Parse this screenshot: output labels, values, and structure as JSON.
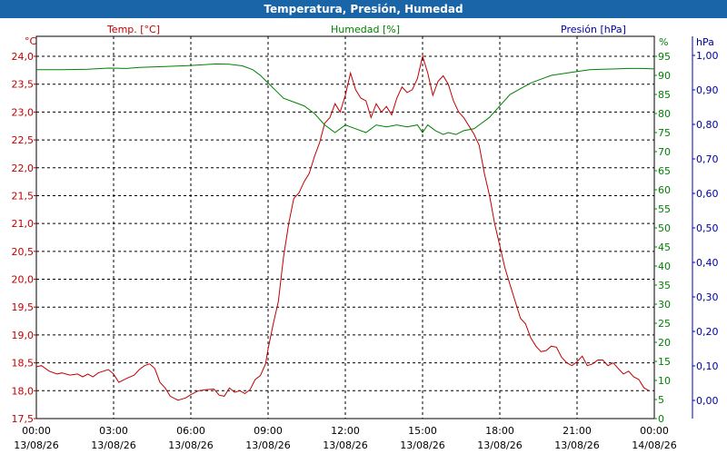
{
  "window": {
    "title": "Temperatura, Presión, Humedad"
  },
  "colors": {
    "temp": "#c00000",
    "hum": "#008000",
    "pres": "#0000a0",
    "titlebar": "#1a64a8"
  },
  "chart_data": {
    "type": "line",
    "title": "Temperatura, Presión, Humedad",
    "grid": true,
    "x_range": [
      "13/08/26 00:00",
      "14/08/26 00:00"
    ],
    "x_ticks": [
      {
        "time": "00:00",
        "date": "13/08/26"
      },
      {
        "time": "03:00",
        "date": "13/08/26"
      },
      {
        "time": "06:00",
        "date": "13/08/26"
      },
      {
        "time": "09:00",
        "date": "13/08/26"
      },
      {
        "time": "12:00",
        "date": "13/08/26"
      },
      {
        "time": "15:00",
        "date": "13/08/26"
      },
      {
        "time": "18:00",
        "date": "13/08/26"
      },
      {
        "time": "21:00",
        "date": "13/08/26"
      },
      {
        "time": "00:00",
        "date": "14/08/26"
      }
    ],
    "axes": {
      "temp": {
        "label": "Temp. [°C]",
        "unit": "°C",
        "range": [
          17.5,
          24.0
        ],
        "ticks": [
          "17,5",
          "18,0",
          "18,5",
          "19,0",
          "19,5",
          "20,0",
          "20,5",
          "21,0",
          "21,5",
          "22,0",
          "22,5",
          "23,0",
          "23,5",
          "24,0"
        ]
      },
      "hum": {
        "label": "Humedad [%]",
        "unit": "%",
        "range": [
          0,
          95
        ],
        "ticks": [
          "0",
          "5",
          "10",
          "15",
          "20",
          "25",
          "30",
          "35",
          "40",
          "45",
          "50",
          "55",
          "60",
          "65",
          "70",
          "75",
          "80",
          "85",
          "90",
          "95"
        ]
      },
      "pres": {
        "label": "Presión [hPa]",
        "unit": "hPa",
        "range": [
          0.0,
          1.0
        ],
        "ticks": [
          "0,00",
          "0,10",
          "0,20",
          "0,30",
          "0,40",
          "0,50",
          "0,60",
          "0,70",
          "0,80",
          "0,90",
          "1,00"
        ]
      }
    },
    "series": [
      {
        "name": "Temp. [°C]",
        "axis": "temp",
        "points": [
          [
            0.0,
            18.43
          ],
          [
            0.2,
            18.45
          ],
          [
            0.5,
            18.35
          ],
          [
            0.8,
            18.3
          ],
          [
            1.0,
            18.32
          ],
          [
            1.3,
            18.28
          ],
          [
            1.6,
            18.3
          ],
          [
            1.8,
            18.25
          ],
          [
            2.0,
            18.3
          ],
          [
            2.2,
            18.25
          ],
          [
            2.4,
            18.32
          ],
          [
            2.6,
            18.35
          ],
          [
            2.8,
            18.38
          ],
          [
            3.0,
            18.3
          ],
          [
            3.2,
            18.15
          ],
          [
            3.5,
            18.22
          ],
          [
            3.8,
            18.28
          ],
          [
            4.0,
            18.38
          ],
          [
            4.2,
            18.45
          ],
          [
            4.4,
            18.48
          ],
          [
            4.6,
            18.4
          ],
          [
            4.8,
            18.15
          ],
          [
            5.0,
            18.05
          ],
          [
            5.2,
            17.9
          ],
          [
            5.5,
            17.83
          ],
          [
            5.8,
            17.87
          ],
          [
            6.0,
            17.93
          ],
          [
            6.3,
            18.0
          ],
          [
            6.6,
            18.02
          ],
          [
            6.9,
            18.03
          ],
          [
            7.1,
            17.92
          ],
          [
            7.3,
            17.9
          ],
          [
            7.5,
            18.05
          ],
          [
            7.7,
            17.97
          ],
          [
            7.9,
            18.0
          ],
          [
            8.1,
            17.95
          ],
          [
            8.3,
            18.02
          ],
          [
            8.5,
            18.2
          ],
          [
            8.7,
            18.27
          ],
          [
            8.9,
            18.48
          ],
          [
            9.0,
            18.75
          ],
          [
            9.2,
            19.2
          ],
          [
            9.4,
            19.6
          ],
          [
            9.6,
            20.4
          ],
          [
            9.8,
            21.0
          ],
          [
            10.0,
            21.45
          ],
          [
            10.2,
            21.55
          ],
          [
            10.4,
            21.75
          ],
          [
            10.6,
            21.9
          ],
          [
            10.8,
            22.2
          ],
          [
            11.0,
            22.45
          ],
          [
            11.2,
            22.8
          ],
          [
            11.4,
            22.9
          ],
          [
            11.6,
            23.15
          ],
          [
            11.8,
            23.0
          ],
          [
            12.0,
            23.3
          ],
          [
            12.2,
            23.7
          ],
          [
            12.4,
            23.4
          ],
          [
            12.6,
            23.25
          ],
          [
            12.8,
            23.2
          ],
          [
            13.0,
            22.9
          ],
          [
            13.2,
            23.15
          ],
          [
            13.4,
            23.0
          ],
          [
            13.6,
            23.1
          ],
          [
            13.8,
            22.95
          ],
          [
            14.0,
            23.25
          ],
          [
            14.2,
            23.45
          ],
          [
            14.4,
            23.35
          ],
          [
            14.6,
            23.4
          ],
          [
            14.8,
            23.6
          ],
          [
            15.0,
            24.0
          ],
          [
            15.2,
            23.7
          ],
          [
            15.4,
            23.3
          ],
          [
            15.6,
            23.55
          ],
          [
            15.8,
            23.65
          ],
          [
            16.0,
            23.5
          ],
          [
            16.2,
            23.2
          ],
          [
            16.4,
            23.0
          ],
          [
            16.6,
            22.9
          ],
          [
            16.8,
            22.75
          ],
          [
            17.0,
            22.6
          ],
          [
            17.2,
            22.4
          ],
          [
            17.4,
            21.9
          ],
          [
            17.6,
            21.5
          ],
          [
            17.8,
            21.0
          ],
          [
            18.0,
            20.6
          ],
          [
            18.2,
            20.2
          ],
          [
            18.4,
            19.9
          ],
          [
            18.6,
            19.6
          ],
          [
            18.8,
            19.3
          ],
          [
            19.0,
            19.2
          ],
          [
            19.2,
            18.95
          ],
          [
            19.4,
            18.8
          ],
          [
            19.6,
            18.7
          ],
          [
            19.8,
            18.72
          ],
          [
            20.0,
            18.8
          ],
          [
            20.2,
            18.78
          ],
          [
            20.4,
            18.6
          ],
          [
            20.6,
            18.5
          ],
          [
            20.8,
            18.45
          ],
          [
            21.0,
            18.52
          ],
          [
            21.2,
            18.62
          ],
          [
            21.4,
            18.45
          ],
          [
            21.6,
            18.48
          ],
          [
            21.8,
            18.55
          ],
          [
            22.0,
            18.55
          ],
          [
            22.2,
            18.45
          ],
          [
            22.4,
            18.5
          ],
          [
            22.6,
            18.4
          ],
          [
            22.8,
            18.3
          ],
          [
            23.0,
            18.35
          ],
          [
            23.2,
            18.25
          ],
          [
            23.4,
            18.2
          ],
          [
            23.6,
            18.05
          ],
          [
            23.8,
            18.0
          ]
        ]
      },
      {
        "name": "Humedad [%]",
        "axis": "hum",
        "points": [
          [
            0.0,
            91.5
          ],
          [
            1.0,
            91.5
          ],
          [
            2.0,
            91.6
          ],
          [
            2.8,
            91.9
          ],
          [
            3.5,
            91.8
          ],
          [
            4.0,
            92.1
          ],
          [
            5.0,
            92.3
          ],
          [
            6.0,
            92.6
          ],
          [
            6.5,
            92.8
          ],
          [
            7.0,
            93.0
          ],
          [
            7.5,
            92.9
          ],
          [
            8.0,
            92.5
          ],
          [
            8.4,
            91.5
          ],
          [
            8.7,
            90.0
          ],
          [
            9.0,
            88.0
          ],
          [
            9.3,
            86.0
          ],
          [
            9.6,
            84.0
          ],
          [
            10.0,
            83.0
          ],
          [
            10.4,
            82.0
          ],
          [
            10.8,
            80.0
          ],
          [
            11.2,
            77.0
          ],
          [
            11.6,
            75.0
          ],
          [
            12.0,
            77.0
          ],
          [
            12.4,
            76.0
          ],
          [
            12.8,
            75.0
          ],
          [
            13.2,
            77.0
          ],
          [
            13.6,
            76.5
          ],
          [
            14.0,
            77.0
          ],
          [
            14.4,
            76.5
          ],
          [
            14.8,
            77.0
          ],
          [
            15.0,
            75.0
          ],
          [
            15.2,
            77.0
          ],
          [
            15.5,
            75.5
          ],
          [
            15.8,
            74.5
          ],
          [
            16.0,
            75.0
          ],
          [
            16.3,
            74.5
          ],
          [
            16.6,
            75.5
          ],
          [
            17.0,
            76.0
          ],
          [
            17.3,
            77.5
          ],
          [
            17.6,
            79.0
          ],
          [
            18.0,
            82.0
          ],
          [
            18.4,
            85.0
          ],
          [
            18.8,
            86.5
          ],
          [
            19.2,
            88.0
          ],
          [
            19.6,
            89.0
          ],
          [
            20.0,
            90.0
          ],
          [
            20.5,
            90.5
          ],
          [
            21.0,
            91.0
          ],
          [
            21.5,
            91.5
          ],
          [
            22.0,
            91.6
          ],
          [
            22.5,
            91.7
          ],
          [
            23.0,
            91.8
          ],
          [
            23.5,
            91.8
          ],
          [
            24.0,
            91.7
          ]
        ]
      }
    ]
  }
}
